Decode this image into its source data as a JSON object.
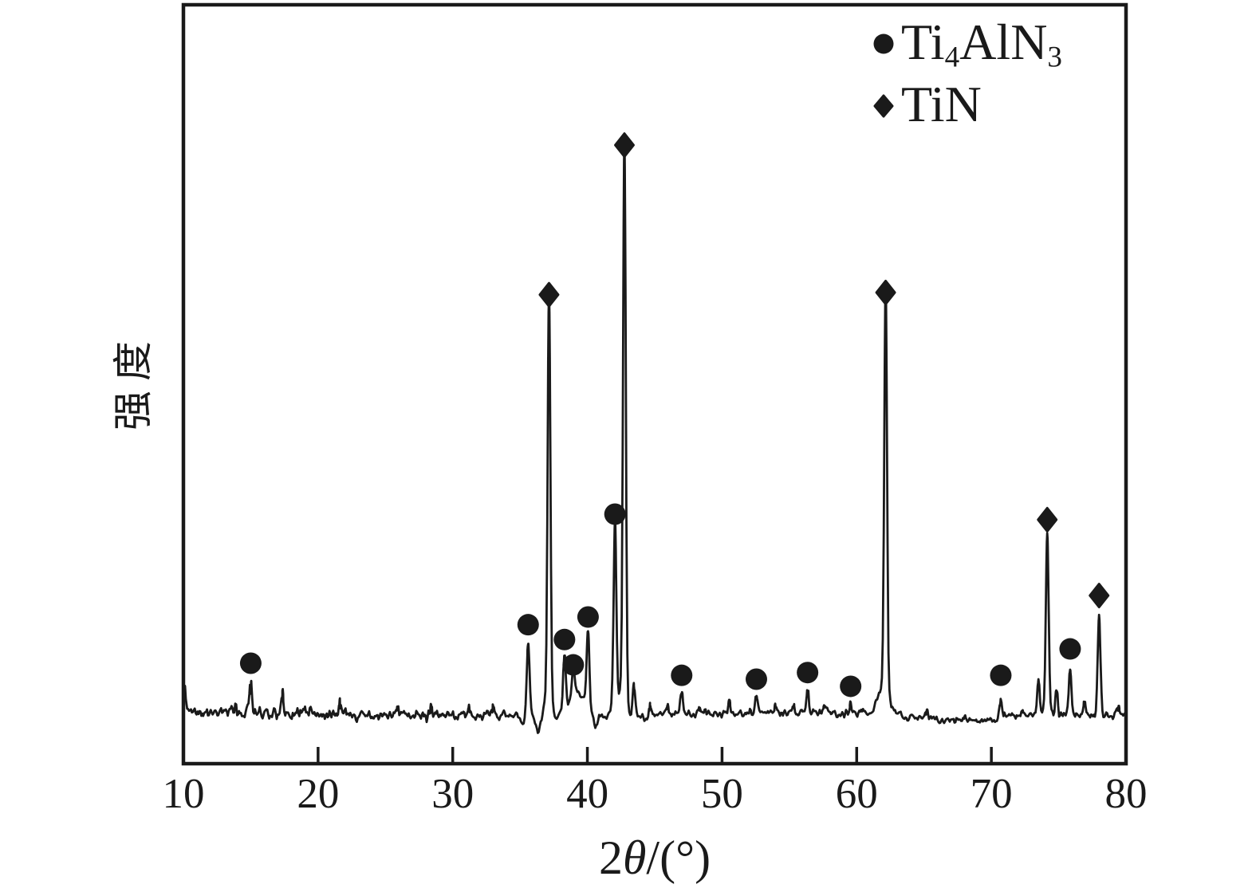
{
  "figure": {
    "background": "#ffffff",
    "ink_color": "#1a1a1a"
  },
  "chart_data": {
    "type": "line",
    "subtype": "xrd-diffraction-pattern",
    "title": "",
    "xlabel": "2θ/(°)",
    "xlabel_rich": [
      {
        "t": "2"
      },
      {
        "t": "θ",
        "italic": true
      },
      {
        "t": "/(°)"
      }
    ],
    "ylabel": "强度",
    "xlim": [
      10,
      80
    ],
    "x_ticks": [
      10,
      20,
      30,
      40,
      50,
      60,
      70,
      80
    ],
    "y_axis": "relative intensity, no numeric ticks",
    "grid": false,
    "intensity_scale": "relative units, tallest peak = 1000",
    "legend": {
      "position": "top-right-inside",
      "entries": [
        {
          "marker": "circle",
          "label": "Ti4AlN3",
          "label_rich": [
            {
              "t": "Ti"
            },
            {
              "t": "4",
              "sub": true
            },
            {
              "t": "AlN"
            },
            {
              "t": "3",
              "sub": true
            }
          ]
        },
        {
          "marker": "diamond",
          "label": "TiN",
          "label_rich": [
            {
              "t": "TiN"
            }
          ]
        }
      ]
    },
    "series": [
      {
        "name": "Ti4AlN3",
        "marker": "circle",
        "peaks": [
          {
            "two_theta": 15.0,
            "intensity": 58
          },
          {
            "two_theta": 35.6,
            "intensity": 128
          },
          {
            "two_theta": 38.3,
            "intensity": 101
          },
          {
            "two_theta": 38.95,
            "intensity": 55
          },
          {
            "two_theta": 40.05,
            "intensity": 142
          },
          {
            "two_theta": 42.05,
            "intensity": 329
          },
          {
            "two_theta": 47.0,
            "intensity": 36
          },
          {
            "two_theta": 52.55,
            "intensity": 29
          },
          {
            "two_theta": 56.35,
            "intensity": 41
          },
          {
            "two_theta": 59.55,
            "intensity": 16
          },
          {
            "two_theta": 70.7,
            "intensity": 36
          },
          {
            "two_theta": 75.85,
            "intensity": 84
          }
        ]
      },
      {
        "name": "TiN",
        "marker": "diamond",
        "peaks": [
          {
            "two_theta": 37.15,
            "intensity": 728
          },
          {
            "two_theta": 42.75,
            "intensity": 1000
          },
          {
            "two_theta": 62.15,
            "intensity": 732
          },
          {
            "two_theta": 74.15,
            "intensity": 319
          },
          {
            "two_theta": 78.0,
            "intensity": 181
          }
        ]
      }
    ],
    "unmarked_minor_peaks": [
      {
        "two_theta": 10.12,
        "intensity": 48
      },
      {
        "two_theta": 17.35,
        "intensity": 38
      },
      {
        "two_theta": 21.6,
        "intensity": 16
      },
      {
        "two_theta": 25.9,
        "intensity": 13
      },
      {
        "two_theta": 28.4,
        "intensity": 12
      },
      {
        "two_theta": 31.2,
        "intensity": 12
      },
      {
        "two_theta": 33.0,
        "intensity": 10
      },
      {
        "two_theta": 43.45,
        "intensity": 55
      },
      {
        "two_theta": 44.65,
        "intensity": 18
      },
      {
        "two_theta": 45.95,
        "intensity": 14
      },
      {
        "two_theta": 48.3,
        "intensity": 12
      },
      {
        "two_theta": 50.55,
        "intensity": 20
      },
      {
        "two_theta": 53.95,
        "intensity": 14
      },
      {
        "two_theta": 55.3,
        "intensity": 12
      },
      {
        "two_theta": 57.6,
        "intensity": 18
      },
      {
        "two_theta": 60.4,
        "intensity": 10
      },
      {
        "two_theta": 65.2,
        "intensity": 12
      },
      {
        "two_theta": 68.0,
        "intensity": 8
      },
      {
        "two_theta": 72.3,
        "intensity": 10
      },
      {
        "two_theta": 73.5,
        "intensity": 65
      },
      {
        "two_theta": 74.85,
        "intensity": 48
      },
      {
        "two_theta": 76.9,
        "intensity": 22
      },
      {
        "two_theta": 79.45,
        "intensity": 16
      }
    ],
    "baseline_features": [
      {
        "two_theta": 35.15,
        "intensity": -20,
        "sigma": 0.15
      },
      {
        "two_theta": 36.35,
        "intensity": -32,
        "sigma": 0.22
      },
      {
        "two_theta": 37.65,
        "intensity": -18,
        "sigma": 0.2
      },
      {
        "two_theta": 39.25,
        "intensity": 38,
        "sigma": 0.5
      },
      {
        "two_theta": 40.6,
        "intensity": -24,
        "sigma": 0.15
      },
      {
        "two_theta": 41.4,
        "intensity": -8,
        "sigma": 0.2
      },
      {
        "two_theta": 43.1,
        "intensity": -24,
        "sigma": 0.25
      },
      {
        "two_theta": 44.3,
        "intensity": -10,
        "sigma": 0.3
      },
      {
        "two_theta": 61.75,
        "intensity": 28,
        "sigma": 0.3
      }
    ],
    "noise_regions": [
      {
        "from": 10,
        "to": 19.5,
        "amplitude": 8.5,
        "offset": 0
      },
      {
        "from": 19.5,
        "to": 33.5,
        "amplitude": 6,
        "offset": 2
      },
      {
        "from": 33.5,
        "to": 44.5,
        "amplitude": 4,
        "offset": 0
      },
      {
        "from": 44.5,
        "to": 63.3,
        "amplitude": 4.5,
        "offset": 0
      },
      {
        "from": 63.3,
        "to": 66,
        "amplitude": 3.5,
        "offset": 5
      },
      {
        "from": 66,
        "to": 70.9,
        "amplitude": 3,
        "offset": 9
      },
      {
        "from": 70.9,
        "to": 80,
        "amplitude": 4.5,
        "offset": 2
      }
    ]
  }
}
